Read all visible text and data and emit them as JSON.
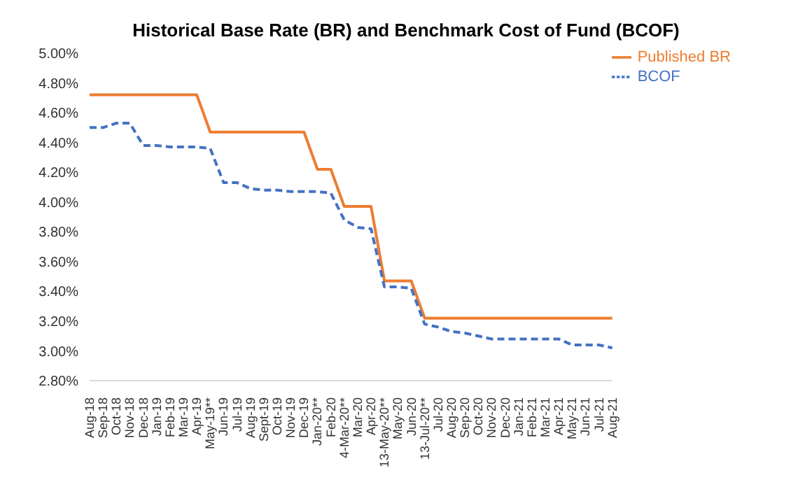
{
  "chart_data": {
    "type": "line",
    "title": "Historical Base Rate (BR) and Benchmark Cost of Fund (BCOF)",
    "categories": [
      "Aug-18",
      "Sep-18",
      "Oct-18",
      "Nov-18",
      "Dec-18",
      "Jan-19",
      "Feb-19",
      "Mar-19",
      "Apr-19",
      "May-19**",
      "Jun-19",
      "Jul-19",
      "Aug-19",
      "Sept-19",
      "Oct-19",
      "Nov-19",
      "Dec-19",
      "Jan-20**",
      "Feb-20",
      "4-Mar-20**",
      "Mar-20",
      "Apr-20",
      "13-May-20**",
      "May-20",
      "Jun-20",
      "13-Jul-20**",
      "Jul-20",
      "Aug-20",
      "Sep-20",
      "Oct-20",
      "Nov-20",
      "Dec-20",
      "Jan-21",
      "Feb-21",
      "Mar-21",
      "Apr-21",
      "May-21",
      "Jun-21",
      "Jul-21",
      "Aug-21"
    ],
    "series": [
      {
        "name": "Published BR",
        "color": "#ed7d31",
        "line_style": "solid",
        "values": [
          4.72,
          4.72,
          4.72,
          4.72,
          4.72,
          4.72,
          4.72,
          4.72,
          4.72,
          4.47,
          4.47,
          4.47,
          4.47,
          4.47,
          4.47,
          4.47,
          4.47,
          4.22,
          4.22,
          3.97,
          3.97,
          3.97,
          3.47,
          3.47,
          3.47,
          3.22,
          3.22,
          3.22,
          3.22,
          3.22,
          3.22,
          3.22,
          3.22,
          3.22,
          3.22,
          3.22,
          3.22,
          3.22,
          3.22,
          3.22
        ]
      },
      {
        "name": "BCOF",
        "color": "#4472c4",
        "line_style": "dashed",
        "values": [
          4.5,
          4.5,
          4.53,
          4.53,
          4.38,
          4.38,
          4.37,
          4.37,
          4.37,
          4.36,
          4.13,
          4.13,
          4.09,
          4.08,
          4.08,
          4.07,
          4.07,
          4.07,
          4.06,
          3.88,
          3.83,
          3.82,
          3.43,
          3.43,
          3.42,
          3.18,
          3.16,
          3.13,
          3.12,
          3.1,
          3.08,
          3.08,
          3.08,
          3.08,
          3.08,
          3.08,
          3.04,
          3.04,
          3.04,
          3.02
        ]
      }
    ],
    "ylim": [
      2.8,
      5.0
    ],
    "yticks": [
      {
        "value": 2.8,
        "label": "2.80%"
      },
      {
        "value": 3.0,
        "label": "3.00%"
      },
      {
        "value": 3.2,
        "label": "3.20%"
      },
      {
        "value": 3.4,
        "label": "3.40%"
      },
      {
        "value": 3.6,
        "label": "3.60%"
      },
      {
        "value": 3.8,
        "label": "3.80%"
      },
      {
        "value": 4.0,
        "label": "4.00%"
      },
      {
        "value": 4.2,
        "label": "4.20%"
      },
      {
        "value": 4.4,
        "label": "4.40%"
      },
      {
        "value": 4.6,
        "label": "4.60%"
      },
      {
        "value": 4.8,
        "label": "4.80%"
      },
      {
        "value": 5.0,
        "label": "5.00%"
      }
    ],
    "grid": false,
    "legend": "top right",
    "marker": "none"
  }
}
